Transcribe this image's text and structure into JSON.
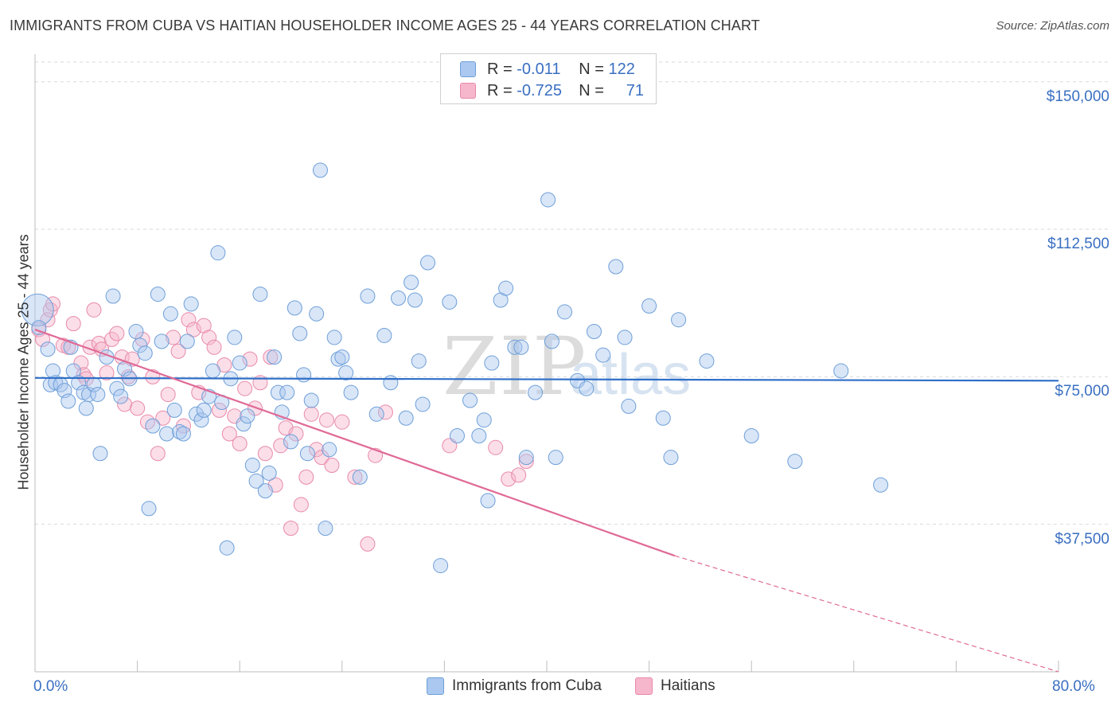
{
  "title": "IMMIGRANTS FROM CUBA VS HAITIAN HOUSEHOLDER INCOME AGES 25 - 44 YEARS CORRELATION CHART",
  "source": "Source: ZipAtlas.com",
  "watermark": {
    "zip": "ZIP",
    "atlas": "atlas"
  },
  "legend": {
    "r_label": "R =",
    "n_label": "N =",
    "rows": [
      {
        "r": "-0.011",
        "n": "122"
      },
      {
        "r": "-0.725",
        "n": "71"
      }
    ]
  },
  "bottom_legend": [
    "Immigrants from Cuba",
    "Haitians"
  ],
  "colors": {
    "cuba_fill": "#aac8f0",
    "cuba_stroke": "#6e9fd8",
    "cuba_line": "#2f6fc8",
    "haiti_fill": "#f6b6cc",
    "haiti_stroke": "#e88aaa",
    "haiti_line": "#e06a96",
    "tick_label": "#3a6fc2",
    "grid": "#d9d9d9"
  },
  "chart_data": {
    "type": "scatter",
    "ylabel": "Householder Income Ages 25 - 44 years",
    "xlim": [
      0,
      80
    ],
    "ylim": [
      0,
      155000
    ],
    "y_ticks": [
      37500,
      75000,
      112500,
      150000
    ],
    "y_tick_labels": [
      "$37,500",
      "$75,000",
      "$112,500",
      "$150,000"
    ],
    "x_tick_labels": [
      "0.0%",
      "80.0%"
    ],
    "grid": "horizontal dashed",
    "legend_placement": "top-center",
    "series": [
      {
        "name": "Immigrants from Cuba",
        "trend": {
          "x0": 0,
          "y0": 74700,
          "x1": 80,
          "y1": 74000
        },
        "points": [
          [
            0.2,
            92000
          ],
          [
            0.3,
            87500
          ],
          [
            1.0,
            82000
          ],
          [
            1.2,
            73000
          ],
          [
            1.4,
            76500
          ],
          [
            1.6,
            73500
          ],
          [
            2.0,
            73000
          ],
          [
            2.3,
            71500
          ],
          [
            2.6,
            68800
          ],
          [
            2.8,
            82500
          ],
          [
            3.0,
            76500
          ],
          [
            3.4,
            73500
          ],
          [
            3.8,
            71000
          ],
          [
            4.0,
            67000
          ],
          [
            4.2,
            70500
          ],
          [
            4.6,
            73000
          ],
          [
            4.9,
            70500
          ],
          [
            5.1,
            55500
          ],
          [
            5.6,
            80000
          ],
          [
            6.1,
            95500
          ],
          [
            6.4,
            72000
          ],
          [
            6.7,
            70000
          ],
          [
            7.0,
            77000
          ],
          [
            7.4,
            74500
          ],
          [
            7.9,
            86500
          ],
          [
            8.2,
            83000
          ],
          [
            8.6,
            81000
          ],
          [
            8.9,
            41500
          ],
          [
            9.2,
            62500
          ],
          [
            9.6,
            96000
          ],
          [
            9.9,
            84000
          ],
          [
            10.3,
            60500
          ],
          [
            10.6,
            91000
          ],
          [
            10.9,
            66500
          ],
          [
            11.3,
            61000
          ],
          [
            11.6,
            60500
          ],
          [
            11.9,
            84000
          ],
          [
            12.2,
            93500
          ],
          [
            12.6,
            65500
          ],
          [
            13.0,
            64000
          ],
          [
            13.2,
            66500
          ],
          [
            13.6,
            70000
          ],
          [
            13.9,
            76500
          ],
          [
            14.3,
            106500
          ],
          [
            14.6,
            68500
          ],
          [
            15.0,
            31500
          ],
          [
            15.3,
            74500
          ],
          [
            15.6,
            85000
          ],
          [
            16.0,
            78500
          ],
          [
            16.3,
            63000
          ],
          [
            16.6,
            65000
          ],
          [
            17.0,
            52500
          ],
          [
            17.3,
            48500
          ],
          [
            17.6,
            96000
          ],
          [
            18.0,
            46000
          ],
          [
            18.3,
            50500
          ],
          [
            18.7,
            80000
          ],
          [
            19.0,
            71000
          ],
          [
            19.3,
            66000
          ],
          [
            19.7,
            71000
          ],
          [
            20.0,
            58500
          ],
          [
            20.3,
            92500
          ],
          [
            20.7,
            86000
          ],
          [
            21.0,
            75500
          ],
          [
            21.3,
            55500
          ],
          [
            21.6,
            69000
          ],
          [
            22.0,
            91000
          ],
          [
            22.3,
            127500
          ],
          [
            22.7,
            36500
          ],
          [
            23.0,
            56500
          ],
          [
            23.4,
            85000
          ],
          [
            23.7,
            79500
          ],
          [
            24.0,
            80000
          ],
          [
            24.3,
            76000
          ],
          [
            24.7,
            71000
          ],
          [
            25.4,
            49500
          ],
          [
            26.0,
            95500
          ],
          [
            26.7,
            65500
          ],
          [
            27.3,
            85500
          ],
          [
            27.8,
            73500
          ],
          [
            28.4,
            95000
          ],
          [
            29.0,
            64500
          ],
          [
            29.4,
            99000
          ],
          [
            29.7,
            94500
          ],
          [
            30.0,
            79000
          ],
          [
            30.3,
            68000
          ],
          [
            30.7,
            104000
          ],
          [
            31.7,
            27000
          ],
          [
            32.4,
            94000
          ],
          [
            33.0,
            60000
          ],
          [
            34.0,
            69000
          ],
          [
            34.7,
            60000
          ],
          [
            35.1,
            64000
          ],
          [
            35.4,
            43500
          ],
          [
            35.7,
            78500
          ],
          [
            36.4,
            94500
          ],
          [
            36.8,
            97500
          ],
          [
            37.5,
            82500
          ],
          [
            38.0,
            82500
          ],
          [
            38.4,
            54500
          ],
          [
            39.1,
            71000
          ],
          [
            40.1,
            120000
          ],
          [
            40.4,
            84000
          ],
          [
            40.7,
            54500
          ],
          [
            41.4,
            91500
          ],
          [
            42.4,
            74000
          ],
          [
            43.1,
            72000
          ],
          [
            43.7,
            86500
          ],
          [
            44.4,
            80500
          ],
          [
            45.4,
            103000
          ],
          [
            46.1,
            85000
          ],
          [
            46.4,
            67500
          ],
          [
            48.0,
            93000
          ],
          [
            49.1,
            64500
          ],
          [
            49.7,
            54500
          ],
          [
            50.3,
            89500
          ],
          [
            52.5,
            79000
          ],
          [
            56.0,
            60000
          ],
          [
            59.4,
            53500
          ],
          [
            63.0,
            76500
          ],
          [
            66.1,
            47500
          ]
        ]
      },
      {
        "name": "Haitians",
        "trend": {
          "x0": 0,
          "y0": 87000,
          "x1": 50.0,
          "y1": 29500,
          "dash_to_x": 80,
          "dash_to_y": -5000
        },
        "points": [
          [
            0.3,
            87000
          ],
          [
            0.6,
            84500
          ],
          [
            1.0,
            89500
          ],
          [
            1.2,
            92000
          ],
          [
            1.4,
            93500
          ],
          [
            2.2,
            83000
          ],
          [
            2.6,
            82500
          ],
          [
            3.0,
            88500
          ],
          [
            3.6,
            78500
          ],
          [
            3.8,
            75500
          ],
          [
            4.0,
            74500
          ],
          [
            4.3,
            82500
          ],
          [
            4.6,
            92000
          ],
          [
            5.0,
            83500
          ],
          [
            5.2,
            82000
          ],
          [
            5.6,
            76000
          ],
          [
            6.0,
            84500
          ],
          [
            6.4,
            86000
          ],
          [
            6.8,
            80000
          ],
          [
            7.0,
            68000
          ],
          [
            7.3,
            75000
          ],
          [
            7.6,
            79500
          ],
          [
            8.0,
            67000
          ],
          [
            8.4,
            84500
          ],
          [
            8.8,
            63500
          ],
          [
            9.2,
            75000
          ],
          [
            9.6,
            55500
          ],
          [
            10.0,
            64500
          ],
          [
            10.4,
            70500
          ],
          [
            10.8,
            85000
          ],
          [
            11.2,
            81500
          ],
          [
            11.6,
            62500
          ],
          [
            12.0,
            89500
          ],
          [
            12.4,
            87000
          ],
          [
            12.8,
            71000
          ],
          [
            13.2,
            88000
          ],
          [
            13.6,
            85000
          ],
          [
            14.0,
            82500
          ],
          [
            14.4,
            66500
          ],
          [
            14.8,
            78000
          ],
          [
            15.2,
            60500
          ],
          [
            15.6,
            65000
          ],
          [
            16.0,
            58000
          ],
          [
            16.4,
            72000
          ],
          [
            16.8,
            79500
          ],
          [
            17.2,
            67000
          ],
          [
            17.6,
            73500
          ],
          [
            18.0,
            55500
          ],
          [
            18.4,
            80000
          ],
          [
            18.8,
            47500
          ],
          [
            19.2,
            57500
          ],
          [
            19.6,
            62000
          ],
          [
            20.0,
            36500
          ],
          [
            20.4,
            60500
          ],
          [
            20.8,
            42500
          ],
          [
            21.2,
            49500
          ],
          [
            21.6,
            65500
          ],
          [
            22.0,
            56500
          ],
          [
            22.4,
            54500
          ],
          [
            22.8,
            64000
          ],
          [
            23.2,
            52500
          ],
          [
            24.0,
            63500
          ],
          [
            25.0,
            49500
          ],
          [
            26.0,
            32500
          ],
          [
            26.6,
            55000
          ],
          [
            27.4,
            66000
          ],
          [
            32.4,
            57500
          ],
          [
            36.0,
            57000
          ],
          [
            37.0,
            49000
          ],
          [
            37.8,
            50000
          ],
          [
            38.4,
            53500
          ]
        ]
      }
    ]
  }
}
